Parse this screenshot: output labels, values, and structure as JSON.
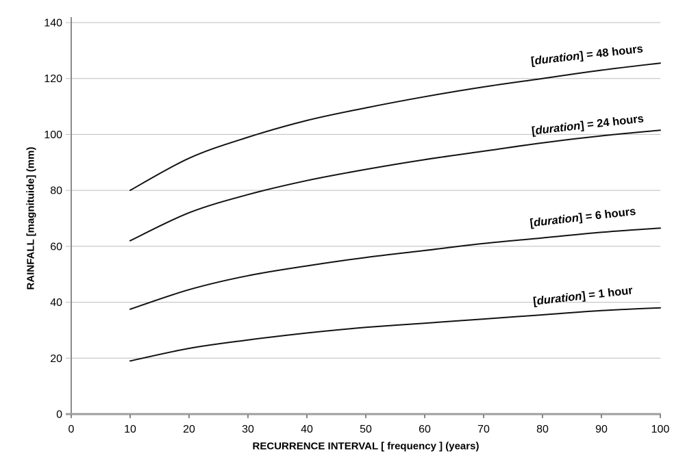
{
  "chart_data": {
    "type": "line",
    "xlabel": "RECURRENCE INTERVAL [ frequency ] (years)",
    "ylabel": "RAINFALL [magnituide] (mm)",
    "xlim": [
      0,
      100
    ],
    "ylim": [
      0,
      140
    ],
    "x_ticks": [
      0,
      10,
      20,
      30,
      40,
      50,
      60,
      70,
      80,
      90,
      100
    ],
    "y_ticks": [
      0,
      20,
      40,
      60,
      80,
      100,
      120,
      140
    ],
    "grid": "horizontal",
    "legend_position": "inline-labels-above-curves",
    "x": [
      10,
      20,
      30,
      40,
      50,
      60,
      70,
      80,
      90,
      100
    ],
    "series": [
      {
        "id": "48-hours",
        "name": "48 hours",
        "label": {
          "pre": "[",
          "italic": "duration",
          "post": "] = 48 hours"
        },
        "values": [
          80,
          91.5,
          99,
          105,
          109.5,
          113.5,
          117,
          120,
          123,
          125.5
        ]
      },
      {
        "id": "24-hours",
        "name": "24 hours",
        "label": {
          "pre": "[",
          "italic": "duration",
          "post": "] = 24 hours"
        },
        "values": [
          62,
          72,
          78.5,
          83.5,
          87.5,
          91,
          94,
          97,
          99.5,
          101.5
        ]
      },
      {
        "id": "6-hours",
        "name": "6 hours",
        "label": {
          "pre": "[",
          "italic": "duration",
          "post": "] = 6 hours"
        },
        "values": [
          37.5,
          44.5,
          49.5,
          53,
          56,
          58.5,
          61,
          63,
          65,
          66.5
        ]
      },
      {
        "id": "1-hour",
        "name": "1 hour",
        "label": {
          "pre": "[",
          "italic": "duration",
          "post": "] = 1 hour"
        },
        "values": [
          19,
          23.5,
          26.5,
          29,
          31,
          32.5,
          34,
          35.5,
          37,
          38
        ]
      }
    ],
    "colors": {
      "line": "#111111",
      "grid": "#bcbcbc",
      "x_axis": "#9d9d9d",
      "y_axis": "#8a8a8a",
      "tick": "#3a3a3a",
      "text": "#000000"
    }
  }
}
